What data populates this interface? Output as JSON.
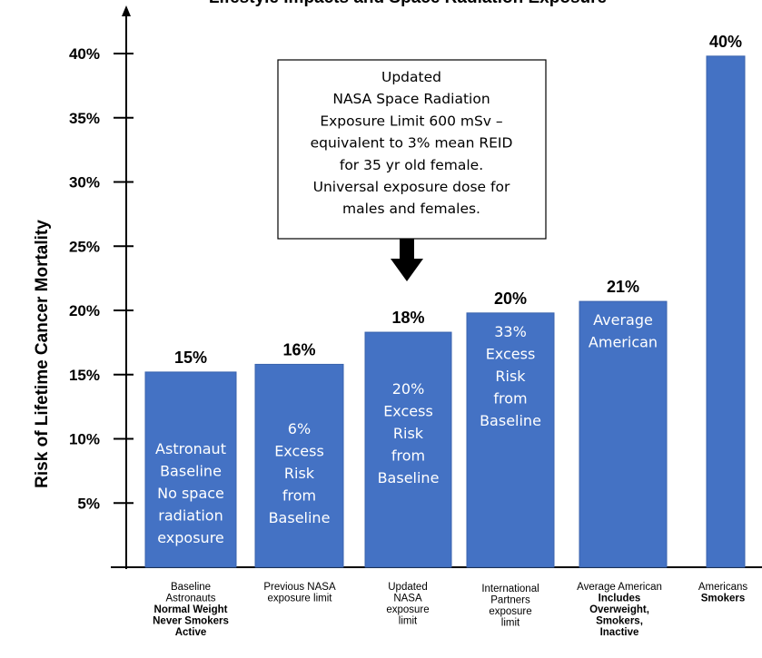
{
  "chart_data": {
    "type": "bar",
    "title": "Lifestyle Impacts and Space Radiation Exposure",
    "ylabel": "Risk of Lifetime Cancer Mortality",
    "xlabel": "",
    "ylim": [
      0,
      40
    ],
    "yticks": [
      "5%",
      "10%",
      "15%",
      "20%",
      "25%",
      "30%",
      "35%",
      "40%"
    ],
    "grid": false,
    "bar_color": "#4472C4",
    "bars": [
      {
        "value": 15.2,
        "label": "15%",
        "inner_text": [
          "Astronaut",
          "Baseline",
          "No space",
          "radiation",
          "exposure"
        ],
        "category": [
          "Baseline",
          "Astronauts"
        ],
        "category_bold": [
          "Normal Weight",
          "Never Smokers",
          "Active"
        ]
      },
      {
        "value": 15.8,
        "label": "16%",
        "inner_text": [
          "6%",
          "Excess",
          "Risk",
          "from",
          "Baseline"
        ],
        "category": [
          "Previous NASA",
          "exposure limit"
        ],
        "category_bold": []
      },
      {
        "value": 18.3,
        "label": "18%",
        "inner_text": [
          "20%",
          "Excess",
          "Risk",
          "from",
          "Baseline"
        ],
        "category": [
          "Updated",
          "NASA",
          "exposure",
          "limit"
        ],
        "category_bold": []
      },
      {
        "value": 19.8,
        "label": "20%",
        "inner_text": [
          "33%",
          "Excess",
          "Risk",
          "from",
          "Baseline"
        ],
        "category": [
          "International",
          "Partners",
          "exposure",
          "limit"
        ],
        "category_bold": []
      },
      {
        "value": 20.7,
        "label": "21%",
        "inner_text": [
          "Average",
          "American"
        ],
        "category": [
          "Average American"
        ],
        "category_bold": [
          "Includes",
          "Overweight,",
          "Smokers,",
          "Inactive"
        ]
      },
      {
        "value": 39.8,
        "label": "40%",
        "inner_text": [],
        "category": [
          "Americans"
        ],
        "category_bold": [
          "Smokers"
        ]
      }
    ],
    "annotation": {
      "lines": [
        "Updated",
        "NASA Space Radiation",
        "Exposure Limit 600 mSv –",
        "equivalent to 3% mean REID",
        "for 35 yr old female.",
        "Universal exposure dose for",
        "males and females."
      ],
      "points_to_bar": 2
    }
  }
}
